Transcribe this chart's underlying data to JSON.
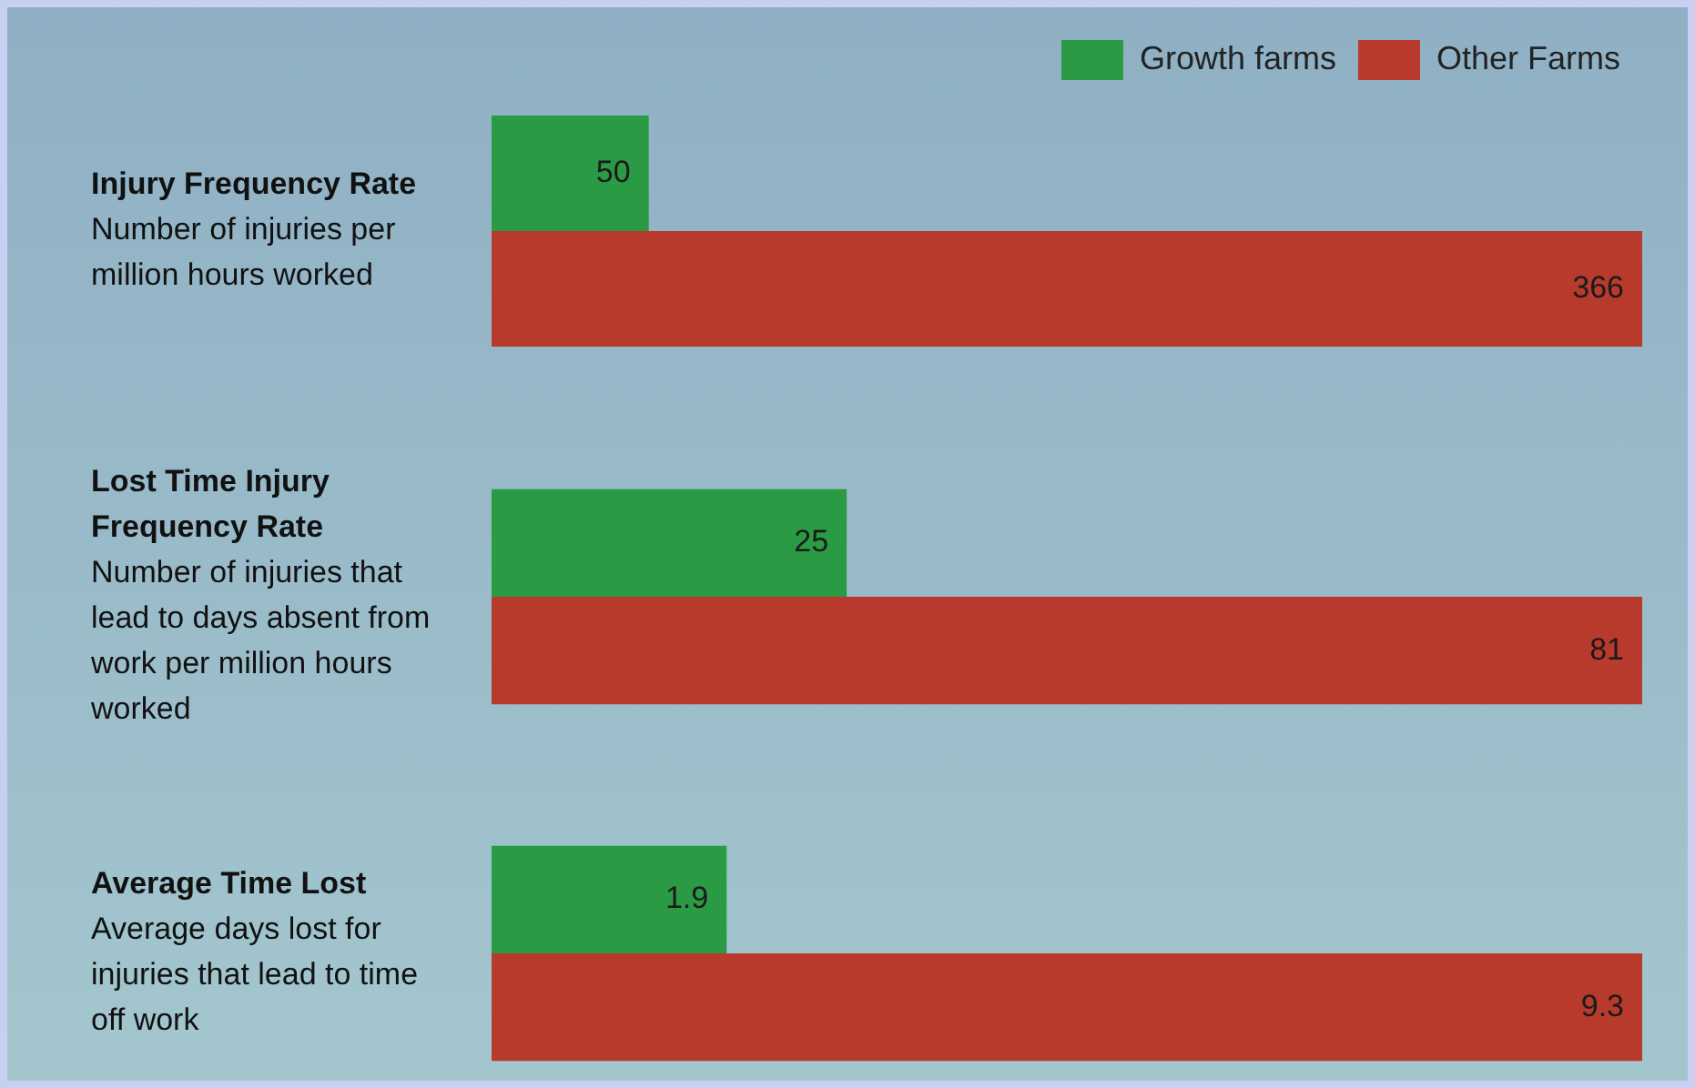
{
  "chart_data": [
    {
      "type": "bar",
      "orientation": "horizontal",
      "title": "Injury Frequency Rate",
      "subtitle": "Number of injuries per million hours worked",
      "categories": [
        null
      ],
      "series": [
        {
          "name": "Growth farms",
          "color": "#2a9a45",
          "values": [
            50
          ]
        },
        {
          "name": "Other Farms",
          "color": "#b83a2c",
          "values": [
            366
          ]
        }
      ],
      "data_labels": true,
      "legend": "top right"
    },
    {
      "type": "bar",
      "orientation": "horizontal",
      "title": "Lost Time Injury Frequency Rate",
      "subtitle": "Number of injuries that lead to days absent from work per million hours worked",
      "categories": [
        null
      ],
      "series": [
        {
          "color": "#2a9a45",
          "values": [
            25
          ]
        },
        {
          "color": "#b83a2c",
          "values": [
            81
          ]
        }
      ],
      "data_labels": true
    },
    {
      "type": "bar",
      "orientation": "horizontal",
      "title": "Average Time Lost",
      "subtitle": "Average days lost for injuries that lead to time off work",
      "categories": [
        null
      ],
      "series": [
        {
          "color": "#2a9a45",
          "values": [
            1.9
          ]
        },
        {
          "color": "#b83a2c",
          "values": [
            9.3
          ]
        }
      ],
      "data_labels": true
    }
  ]
}
